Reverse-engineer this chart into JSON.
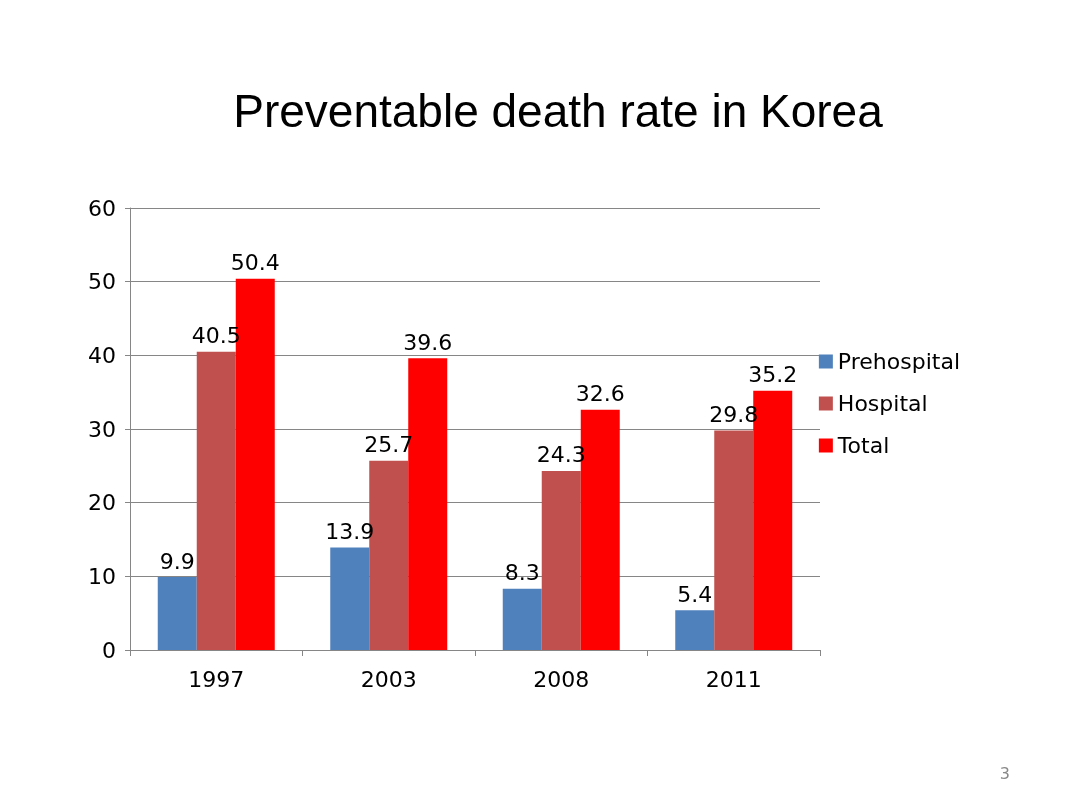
{
  "chart_data": {
    "type": "bar",
    "title": "Preventable death rate in Korea",
    "categories": [
      "1997",
      "2003",
      "2008",
      "2011"
    ],
    "series": [
      {
        "name": "Prehospital",
        "color": "#4f81bd",
        "values": [
          9.9,
          13.9,
          8.3,
          5.4
        ]
      },
      {
        "name": "Hospital",
        "color": "#c0504d",
        "values": [
          40.5,
          25.7,
          24.3,
          29.8
        ]
      },
      {
        "name": "Total",
        "color": "#ff0000",
        "values": [
          50.4,
          39.6,
          32.6,
          35.2
        ]
      }
    ],
    "ylim": [
      0,
      60
    ],
    "yticks": [
      0,
      10,
      20,
      30,
      40,
      50,
      60
    ],
    "grid": "y",
    "legend": "right",
    "data_labels": true,
    "annotations": [
      "3"
    ]
  }
}
